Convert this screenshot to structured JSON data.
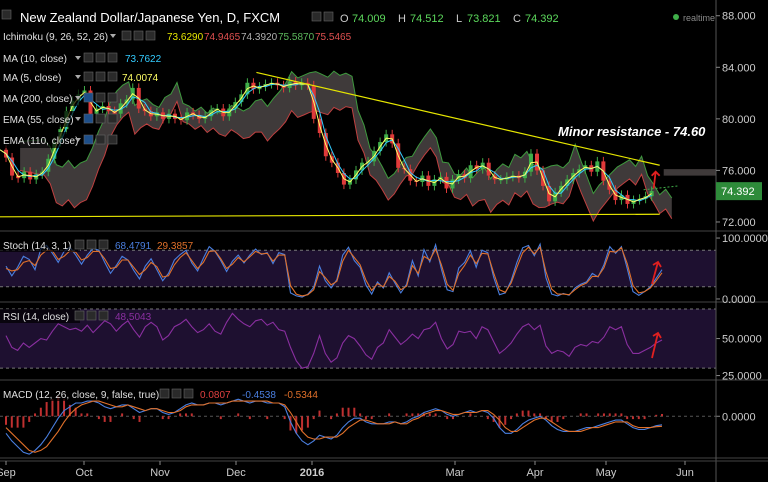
{
  "chart_data": [
    {
      "type": "candlestick",
      "title": "New Zealand Dollar/Japanese Yen, D, FXCM",
      "ohlc": {
        "o_label": "O",
        "o": "74.009",
        "h_label": "H",
        "h": "74.512",
        "l_label": "L",
        "l": "73.821",
        "c_label": "C",
        "c": "74.392"
      },
      "last_price": "74.392",
      "realtime_label": "realtime",
      "y_ticks": [
        "88.000",
        "84.000",
        "80.000",
        "76.000",
        "72.000"
      ],
      "y_values": [
        88,
        84,
        80,
        76,
        72
      ],
      "ylim": [
        71.3,
        88.6
      ],
      "x_ticks": [
        "Sep",
        "Oct",
        "Nov",
        "Dec",
        "2016",
        "Mar",
        "Apr",
        "May",
        "Jun"
      ],
      "annotation": "Minor resistance - 74.60",
      "indicators": [
        {
          "name": "Ichimoku (9, 26, 52, 26)",
          "values": [
            "73.6290",
            "74.9465",
            "74.3920",
            "75.5870",
            "75.5465"
          ],
          "colors": [
            "#e6e600",
            "#e05050",
            "#b0b0b0",
            "#5cb85c",
            "#e05050"
          ]
        },
        {
          "name": "MA (10, close)",
          "value": "73.7622",
          "color": "#33ccff"
        },
        {
          "name": "MA (5, close)",
          "value": "74.0074",
          "color": "#ffff66"
        },
        {
          "name": "MA (200, close)",
          "value": "",
          "color": ""
        },
        {
          "name": "EMA (55, close)",
          "value": "",
          "color": ""
        },
        {
          "name": "EMA (110, close)",
          "value": "",
          "color": ""
        }
      ],
      "close_points": [
        [
          0,
          77.6
        ],
        [
          6,
          77.0
        ],
        [
          12,
          75.6
        ],
        [
          18,
          75.4
        ],
        [
          24,
          75.9
        ],
        [
          30,
          75.3
        ],
        [
          36,
          75.7
        ],
        [
          42,
          75.9
        ],
        [
          48,
          76.9
        ],
        [
          54,
          78.2
        ],
        [
          60,
          79.2
        ],
        [
          66,
          80.6
        ],
        [
          72,
          81.4
        ],
        [
          78,
          81.9
        ],
        [
          84,
          82.2
        ],
        [
          90,
          80.4
        ],
        [
          96,
          80.8
        ],
        [
          102,
          81.0
        ],
        [
          108,
          80.6
        ],
        [
          114,
          80.4
        ],
        [
          120,
          81.2
        ],
        [
          126,
          81.5
        ],
        [
          132,
          82.4
        ],
        [
          138,
          80.8
        ],
        [
          144,
          80.6
        ],
        [
          150,
          80.2
        ],
        [
          156,
          80.5
        ],
        [
          162,
          80.0
        ],
        [
          168,
          80.4
        ],
        [
          174,
          80.0
        ],
        [
          180,
          79.9
        ],
        [
          186,
          80.5
        ],
        [
          192,
          80.3
        ],
        [
          198,
          80.0
        ],
        [
          204,
          80.2
        ],
        [
          210,
          80.7
        ],
        [
          216,
          80.8
        ],
        [
          222,
          80.2
        ],
        [
          228,
          80.8
        ],
        [
          234,
          81.3
        ],
        [
          240,
          81.9
        ],
        [
          246,
          82.8
        ],
        [
          252,
          82.3
        ],
        [
          258,
          82.5
        ],
        [
          264,
          82.7
        ],
        [
          270,
          82.8
        ],
        [
          276,
          82.6
        ],
        [
          282,
          82.4
        ],
        [
          288,
          82.9
        ],
        [
          294,
          82.6
        ],
        [
          300,
          82.8
        ],
        [
          306,
          82.6
        ],
        [
          312,
          80.0
        ],
        [
          318,
          78.9
        ],
        [
          324,
          77.1
        ],
        [
          330,
          76.6
        ],
        [
          336,
          75.8
        ],
        [
          342,
          74.9
        ],
        [
          348,
          75.3
        ],
        [
          354,
          76.0
        ],
        [
          360,
          76.6
        ],
        [
          366,
          76.7
        ],
        [
          372,
          77.5
        ],
        [
          378,
          78.2
        ],
        [
          384,
          78.8
        ],
        [
          390,
          78.1
        ],
        [
          396,
          76.2
        ],
        [
          402,
          76.1
        ],
        [
          408,
          75.2
        ],
        [
          414,
          75.1
        ],
        [
          420,
          75.6
        ],
        [
          426,
          74.8
        ],
        [
          432,
          75.3
        ],
        [
          438,
          75.5
        ],
        [
          444,
          74.6
        ],
        [
          450,
          75.3
        ],
        [
          456,
          75.7
        ],
        [
          462,
          75.4
        ],
        [
          468,
          76.4
        ],
        [
          474,
          76.1
        ],
        [
          480,
          76.6
        ],
        [
          486,
          75.6
        ],
        [
          492,
          75.3
        ],
        [
          498,
          75.3
        ],
        [
          504,
          75.5
        ],
        [
          510,
          75.6
        ],
        [
          516,
          75.4
        ],
        [
          522,
          75.9
        ],
        [
          528,
          77.3
        ],
        [
          534,
          76.0
        ],
        [
          540,
          74.8
        ],
        [
          546,
          73.6
        ],
        [
          552,
          74.3
        ],
        [
          558,
          74.8
        ],
        [
          564,
          75.3
        ],
        [
          570,
          75.8
        ],
        [
          576,
          76.1
        ],
        [
          582,
          76.4
        ],
        [
          588,
          75.9
        ],
        [
          594,
          76.7
        ],
        [
          600,
          75.2
        ],
        [
          606,
          74.5
        ],
        [
          612,
          73.7
        ],
        [
          618,
          74.1
        ],
        [
          624,
          73.4
        ],
        [
          630,
          73.7
        ],
        [
          636,
          73.8
        ],
        [
          642,
          74.0
        ],
        [
          648,
          74.4
        ]
      ]
    },
    {
      "type": "line",
      "title": "Stoch (14, 3, 1)",
      "values_shown": [
        "68.4791",
        "29.3857"
      ],
      "value_colors": [
        "#4a7fe0",
        "#e0702a"
      ],
      "y_ticks": [
        "100.0000",
        "0.0000"
      ],
      "y_values": [
        100,
        0
      ],
      "ylim": [
        -5,
        105
      ],
      "series": [
        {
          "color": "#4a7fe0",
          "values": [
            54,
            38,
            52,
            70,
            65,
            48,
            82,
            88,
            75,
            60,
            78,
            85,
            72,
            57,
            72,
            83,
            80,
            60,
            42,
            55,
            70,
            64,
            47,
            33,
            54,
            66,
            48,
            30,
            42,
            64,
            73,
            80,
            59,
            46,
            67,
            86,
            78,
            63,
            45,
            62,
            72,
            59,
            72,
            82,
            73,
            76,
            58,
            76,
            73,
            10,
            5,
            3,
            8,
            19,
            54,
            30,
            18,
            32,
            72,
            85,
            63,
            52,
            23,
            8,
            28,
            18,
            43,
            26,
            10,
            24,
            63,
            38,
            81,
            61,
            89,
            49,
            15,
            12,
            51,
            60,
            79,
            52,
            80,
            76,
            36,
            7,
            10,
            30,
            60,
            84,
            88,
            71,
            90,
            35,
            8,
            5,
            9,
            6,
            18,
            24,
            28,
            42,
            36,
            56,
            86,
            75,
            86,
            50,
            12,
            6,
            12,
            20,
            34,
            48
          ]
        },
        {
          "color": "#e0702a",
          "values": [
            50,
            46,
            48,
            60,
            63,
            55,
            72,
            80,
            79,
            65,
            70,
            79,
            77,
            64,
            68,
            78,
            78,
            66,
            50,
            52,
            64,
            64,
            52,
            40,
            48,
            60,
            53,
            36,
            38,
            56,
            68,
            76,
            63,
            50,
            60,
            78,
            79,
            66,
            50,
            57,
            68,
            61,
            69,
            78,
            74,
            75,
            62,
            72,
            72,
            22,
            8,
            5,
            7,
            15,
            45,
            35,
            23,
            29,
            62,
            80,
            68,
            56,
            31,
            14,
            25,
            20,
            37,
            29,
            15,
            21,
            55,
            42,
            70,
            64,
            82,
            56,
            24,
            14,
            42,
            55,
            72,
            58,
            75,
            74,
            43,
            15,
            11,
            26,
            52,
            76,
            85,
            74,
            85,
            45,
            16,
            8,
            8,
            7,
            15,
            22,
            26,
            37,
            37,
            51,
            78,
            77,
            84,
            58,
            22,
            10,
            12,
            18,
            30,
            43
          ]
        }
      ]
    },
    {
      "type": "line",
      "title": "RSI (14, close)",
      "values_shown": [
        "48.5043"
      ],
      "value_colors": [
        "#8a2fa0"
      ],
      "y_ticks": [
        "50.0000",
        "25.0000"
      ],
      "y_values": [
        50,
        25
      ],
      "ylim": [
        22,
        72
      ],
      "series": [
        {
          "color": "#8a2fa0",
          "values": [
            52,
            44,
            42,
            47,
            44,
            47,
            50,
            49,
            55,
            60,
            58,
            56,
            57,
            55,
            59,
            54,
            58,
            62,
            60,
            55,
            59,
            62,
            56,
            51,
            58,
            61,
            58,
            49,
            52,
            58,
            60,
            63,
            58,
            54,
            56,
            60,
            55,
            53,
            61,
            67,
            63,
            60,
            58,
            62,
            63,
            59,
            61,
            56,
            55,
            44,
            35,
            30,
            31,
            40,
            52,
            40,
            34,
            37,
            47,
            52,
            50,
            45,
            39,
            36,
            44,
            47,
            56,
            51,
            46,
            49,
            53,
            50,
            56,
            57,
            61,
            50,
            43,
            46,
            55,
            54,
            55,
            50,
            58,
            56,
            48,
            40,
            43,
            47,
            53,
            58,
            60,
            56,
            59,
            45,
            40,
            42,
            41,
            38,
            44,
            46,
            45,
            48,
            47,
            51,
            58,
            56,
            58,
            46,
            40,
            40,
            42,
            44,
            47,
            49
          ]
        }
      ]
    },
    {
      "type": "line",
      "title": "MACD (12, 26, close, 9, false, true)",
      "values_shown": [
        "0.0807",
        "-0.4538",
        "-0.5344"
      ],
      "value_colors": [
        "#e04040",
        "#4a7fe0",
        "#e0702a"
      ],
      "y_ticks": [
        "0.0000"
      ],
      "y_values": [
        0
      ],
      "ylim": [
        -2.2,
        1.7
      ],
      "series": [
        {
          "color": "#4a7fe0",
          "values": [
            -0.9,
            -1.3,
            -1.6,
            -1.9,
            -2.0,
            -1.8,
            -1.5,
            -1.1,
            -0.6,
            -0.1,
            0.3,
            0.5,
            0.7,
            0.7,
            0.8,
            0.8,
            0.7,
            0.5,
            0.4,
            0.5,
            0.6,
            0.6,
            0.4,
            0.2,
            0.3,
            0.4,
            0.4,
            0.2,
            0.1,
            0.2,
            0.4,
            0.6,
            0.7,
            0.6,
            0.6,
            0.7,
            0.7,
            0.6,
            0.7,
            0.8,
            0.9,
            0.8,
            0.7,
            0.8,
            0.8,
            0.7,
            0.7,
            0.7,
            0.5,
            -0.3,
            -0.9,
            -1.3,
            -1.5,
            -1.3,
            -1.0,
            -1.1,
            -1.2,
            -1.0,
            -0.6,
            -0.3,
            -0.1,
            -0.1,
            -0.3,
            -0.4,
            -0.4,
            -0.4,
            -0.3,
            -0.3,
            -0.4,
            -0.3,
            -0.1,
            0.0,
            0.2,
            0.3,
            0.4,
            0.3,
            0.1,
            0.0,
            0.1,
            0.2,
            0.3,
            0.2,
            0.3,
            0.2,
            -0.1,
            -0.6,
            -0.9,
            -0.9,
            -0.7,
            -0.4,
            -0.2,
            -0.1,
            0.0,
            -0.2,
            -0.5,
            -0.7,
            -0.8,
            -0.8,
            -0.8,
            -0.7,
            -0.6,
            -0.6,
            -0.5,
            -0.4,
            -0.3,
            -0.2,
            -0.2,
            -0.4,
            -0.6,
            -0.7,
            -0.7,
            -0.6,
            -0.5,
            -0.45
          ]
        },
        {
          "color": "#e0702a",
          "values": [
            -0.6,
            -0.9,
            -1.2,
            -1.5,
            -1.8,
            -1.9,
            -1.8,
            -1.6,
            -1.2,
            -0.8,
            -0.3,
            0.1,
            0.4,
            0.6,
            0.7,
            0.8,
            0.8,
            0.7,
            0.6,
            0.5,
            0.5,
            0.6,
            0.5,
            0.4,
            0.3,
            0.4,
            0.4,
            0.3,
            0.2,
            0.2,
            0.3,
            0.5,
            0.6,
            0.6,
            0.6,
            0.7,
            0.7,
            0.7,
            0.7,
            0.8,
            0.8,
            0.8,
            0.8,
            0.8,
            0.8,
            0.8,
            0.7,
            0.7,
            0.6,
            0.2,
            -0.3,
            -0.8,
            -1.1,
            -1.2,
            -1.2,
            -1.1,
            -1.1,
            -1.1,
            -0.9,
            -0.6,
            -0.4,
            -0.2,
            -0.2,
            -0.3,
            -0.4,
            -0.4,
            -0.4,
            -0.3,
            -0.4,
            -0.4,
            -0.2,
            -0.1,
            0.1,
            0.2,
            0.3,
            0.3,
            0.2,
            0.1,
            0.1,
            0.2,
            0.2,
            0.2,
            0.3,
            0.3,
            0.1,
            -0.2,
            -0.6,
            -0.8,
            -0.8,
            -0.6,
            -0.4,
            -0.2,
            -0.1,
            -0.1,
            -0.3,
            -0.5,
            -0.7,
            -0.8,
            -0.8,
            -0.8,
            -0.7,
            -0.6,
            -0.6,
            -0.5,
            -0.4,
            -0.3,
            -0.3,
            -0.3,
            -0.5,
            -0.6,
            -0.6,
            -0.6,
            -0.55,
            -0.53
          ]
        }
      ]
    }
  ],
  "colors": {
    "up": "#3fae49",
    "down": "#e03a3a",
    "cloud_fill": "#5a5353",
    "resistance_line": "#e6e600",
    "price_tag": "#2e8b3a",
    "stoch_band": "#1e1030",
    "arrow": "#e02020"
  }
}
